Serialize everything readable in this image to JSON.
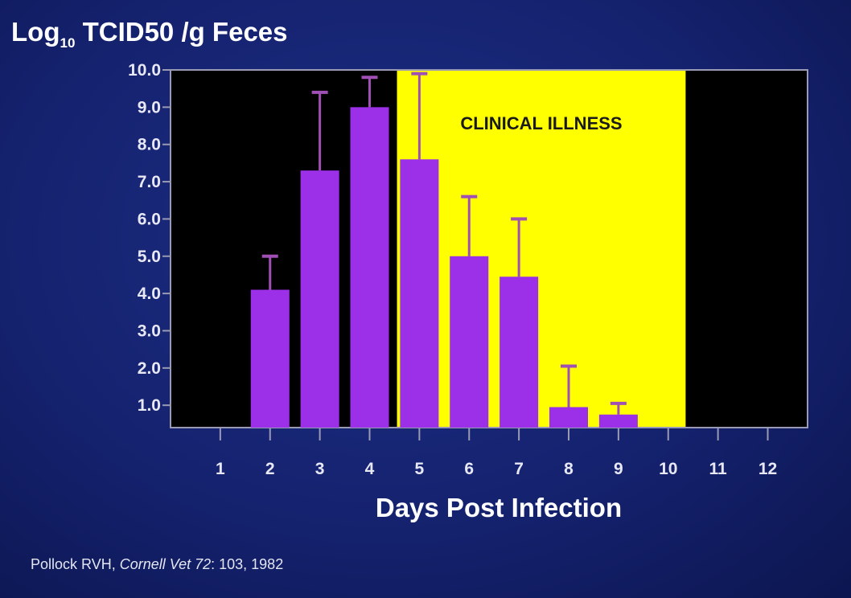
{
  "chart_data": {
    "type": "bar",
    "title_main": "Log",
    "title_sub": "10",
    "title_rest": " TCID50 /g Feces",
    "xlabel": "Days Post Infection",
    "categories": [
      "1",
      "2",
      "3",
      "4",
      "5",
      "6",
      "7",
      "8",
      "9",
      "10",
      "11",
      "12"
    ],
    "values": [
      0,
      4.1,
      7.3,
      9.0,
      7.6,
      5.0,
      4.45,
      0.95,
      0.75,
      0,
      0,
      0
    ],
    "error_upper": [
      null,
      5.0,
      9.4,
      9.8,
      9.9,
      6.6,
      6.0,
      2.05,
      1.05,
      null,
      null,
      null
    ],
    "yticks": [
      "10.0",
      "9.0",
      "8.0",
      "7.0",
      "6.0",
      "5.0",
      "4.0",
      "3.0",
      "2.0",
      "1.0"
    ],
    "ylim": [
      0.4,
      10.0
    ],
    "xlim": [
      0.0,
      12.8
    ],
    "grid": false,
    "shaded_region": {
      "label": "CLINICAL ILLNESS",
      "x_start": 4.55,
      "x_end": 10.35,
      "color": "#ffff00"
    },
    "colors": {
      "bar": "#9b30e8",
      "error_bar": "#a050b4",
      "plot_background": "#000000",
      "axis": "#9a9ab4"
    }
  },
  "citation": {
    "author": "Pollock RVH, ",
    "journal": "Cornell Vet",
    "volume": " 72",
    "rest": ": 103, 1982"
  }
}
